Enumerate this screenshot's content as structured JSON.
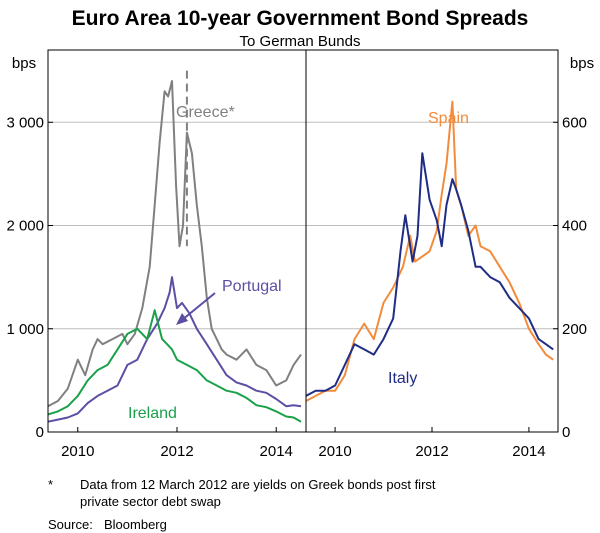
{
  "chart_data": {
    "type": "line",
    "title": "Euro Area 10-year Government Bond Spreads",
    "subtitle": "To German Bunds",
    "x_ticks": [
      "2010",
      "2012",
      "2014"
    ],
    "x_range": [
      2009.4,
      2014.6
    ],
    "panels": [
      {
        "name": "left",
        "ylabel": "bps",
        "ylim": [
          0,
          3700
        ],
        "y_ticks": [
          0,
          1000,
          2000,
          3000
        ],
        "y_tick_labels": [
          "0",
          "1 000",
          "2 000",
          "3 000"
        ],
        "series": [
          {
            "name": "Greece",
            "label": "Greece*",
            "color": "#808080",
            "x": [
              2009.4,
              2009.6,
              2009.8,
              2010.0,
              2010.15,
              2010.3,
              2010.4,
              2010.5,
              2010.7,
              2010.9,
              2011.0,
              2011.15,
              2011.3,
              2011.45,
              2011.55,
              2011.65,
              2011.75,
              2011.82,
              2011.9,
              2011.98,
              2012.05,
              2012.12,
              2012.2,
              2012.3,
              2012.4,
              2012.5,
              2012.6,
              2012.7,
              2012.8,
              2012.9,
              2013.0,
              2013.2,
              2013.4,
              2013.6,
              2013.8,
              2014.0,
              2014.2,
              2014.35,
              2014.5
            ],
            "values": [
              250,
              300,
              420,
              700,
              550,
              800,
              900,
              850,
              900,
              950,
              850,
              950,
              1200,
              1600,
              2200,
              2800,
              3300,
              3250,
              3400,
              2400,
              1800,
              2000,
              2900,
              2700,
              2200,
              1800,
              1300,
              1000,
              900,
              800,
              750,
              700,
              800,
              650,
              600,
              450,
              500,
              650,
              750
            ],
            "dashed_segment": [
              2012.2,
              2012.22
            ]
          },
          {
            "name": "Portugal",
            "label": "Portugal",
            "color": "#5c4fa3",
            "x": [
              2009.4,
              2009.6,
              2009.8,
              2010.0,
              2010.2,
              2010.4,
              2010.6,
              2010.8,
              2011.0,
              2011.2,
              2011.4,
              2011.6,
              2011.75,
              2011.85,
              2011.9,
              2012.0,
              2012.1,
              2012.25,
              2012.4,
              2012.6,
              2012.8,
              2013.0,
              2013.2,
              2013.4,
              2013.6,
              2013.8,
              2014.0,
              2014.2,
              2014.35,
              2014.5
            ],
            "values": [
              100,
              120,
              140,
              180,
              280,
              350,
              400,
              450,
              650,
              700,
              900,
              1050,
              1200,
              1350,
              1500,
              1200,
              1250,
              1150,
              1000,
              850,
              700,
              550,
              480,
              450,
              400,
              380,
              320,
              250,
              260,
              250
            ]
          },
          {
            "name": "Ireland",
            "label": "Ireland",
            "color": "#1aa14a",
            "x": [
              2009.4,
              2009.6,
              2009.8,
              2010.0,
              2010.2,
              2010.4,
              2010.6,
              2010.8,
              2011.0,
              2011.2,
              2011.4,
              2011.55,
              2011.7,
              2011.8,
              2011.9,
              2012.0,
              2012.2,
              2012.4,
              2012.6,
              2012.8,
              2013.0,
              2013.2,
              2013.4,
              2013.6,
              2013.8,
              2014.0,
              2014.2,
              2014.35,
              2014.5
            ],
            "values": [
              170,
              200,
              250,
              350,
              500,
              600,
              650,
              800,
              950,
              1000,
              900,
              1180,
              900,
              850,
              800,
              700,
              650,
              600,
              500,
              450,
              400,
              380,
              330,
              260,
              240,
              200,
              150,
              140,
              100
            ]
          }
        ]
      },
      {
        "name": "right",
        "ylabel": "bps",
        "ylim": [
          0,
          740
        ],
        "y_ticks": [
          0,
          200,
          400,
          600
        ],
        "y_tick_labels": [
          "0",
          "200",
          "400",
          "600"
        ],
        "series": [
          {
            "name": "Spain",
            "label": "Spain",
            "color": "#f28c3c",
            "x": [
              2009.4,
              2009.6,
              2009.8,
              2010.0,
              2010.2,
              2010.4,
              2010.6,
              2010.8,
              2011.0,
              2011.2,
              2011.4,
              2011.55,
              2011.65,
              2011.8,
              2011.95,
              2012.1,
              2012.2,
              2012.3,
              2012.42,
              2012.5,
              2012.6,
              2012.75,
              2012.9,
              2013.0,
              2013.2,
              2013.4,
              2013.6,
              2013.8,
              2014.0,
              2014.2,
              2014.35,
              2014.5
            ],
            "values": [
              60,
              70,
              80,
              80,
              110,
              180,
              210,
              180,
              250,
              280,
              320,
              380,
              330,
              340,
              350,
              390,
              460,
              520,
              640,
              470,
              440,
              380,
              400,
              360,
              350,
              320,
              290,
              250,
              200,
              170,
              150,
              140
            ]
          },
          {
            "name": "Italy",
            "label": "Italy",
            "color": "#1f2d86",
            "x": [
              2009.4,
              2009.6,
              2009.8,
              2010.0,
              2010.2,
              2010.4,
              2010.6,
              2010.8,
              2011.0,
              2011.2,
              2011.35,
              2011.45,
              2011.55,
              2011.6,
              2011.7,
              2011.8,
              2011.95,
              2012.1,
              2012.2,
              2012.3,
              2012.42,
              2012.5,
              2012.6,
              2012.75,
              2012.9,
              2013.0,
              2013.2,
              2013.4,
              2013.6,
              2013.8,
              2014.0,
              2014.2,
              2014.35,
              2014.5
            ],
            "values": [
              70,
              80,
              80,
              90,
              130,
              170,
              160,
              150,
              180,
              220,
              350,
              420,
              360,
              330,
              380,
              540,
              450,
              410,
              360,
              440,
              490,
              470,
              440,
              390,
              320,
              320,
              300,
              290,
              260,
              240,
              220,
              180,
              170,
              160
            ]
          }
        ]
      }
    ]
  },
  "footnote": {
    "marker": "*",
    "line1": "Data from 12 March 2012 are yields on Greek bonds post first",
    "line2": "private sector debt swap",
    "source_label": "Source:",
    "source_value": "Bloomberg"
  }
}
